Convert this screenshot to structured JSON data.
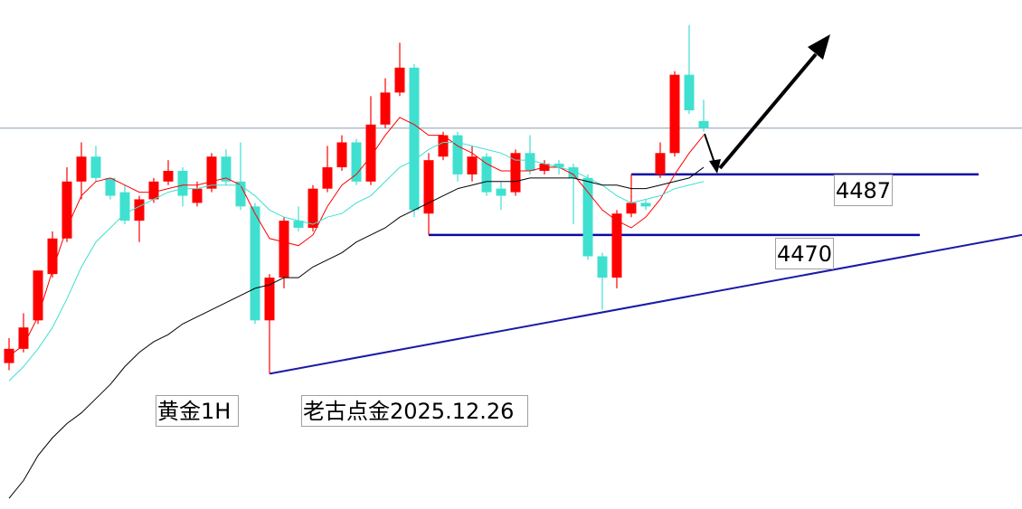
{
  "chart_data": {
    "type": "candlestick",
    "open": [
      4434,
      4438,
      4446,
      4459,
      4469,
      4485,
      4492,
      4486,
      4482,
      4474,
      4480,
      4485,
      4488,
      4479,
      4483,
      4492,
      4485,
      4478,
      4446,
      4458,
      4474,
      4472,
      4483,
      4489,
      4496,
      4485,
      4501,
      4510,
      4517,
      4476,
      4492,
      4498,
      4487,
      4492,
      4483,
      4482,
      4493,
      4488,
      4490,
      4489,
      4486,
      4464,
      4458,
      4476,
      4479,
      4487,
      4493,
      4515,
      4502
    ],
    "high": [
      4441,
      4448,
      4460,
      4471,
      4489,
      4496,
      4495,
      4486,
      4484,
      4481,
      4486,
      4491,
      4489,
      4485,
      4493,
      4494,
      4496,
      4479,
      4459,
      4475,
      4478,
      4484,
      4495,
      4498,
      4497,
      4509,
      4514,
      4524,
      4518,
      4493,
      4499,
      4499,
      4495,
      4493,
      4485,
      4494,
      4498,
      4491,
      4491,
      4490,
      4487,
      4465,
      4477,
      4487,
      4480,
      4496,
      4516,
      4529,
      4508
    ],
    "low": [
      4432,
      4437,
      4445,
      4458,
      4468,
      4480,
      4485,
      4480,
      4473,
      4468,
      4479,
      4484,
      4478,
      4478,
      4482,
      4484,
      4477,
      4445,
      4431,
      4455,
      4471,
      4471,
      4482,
      4488,
      4484,
      4484,
      4500,
      4509,
      4475,
      4470,
      4491,
      4485,
      4485,
      4481,
      4477,
      4481,
      4487,
      4487,
      4487,
      4473,
      4463,
      4449,
      4455,
      4475,
      4477,
      4486,
      4492,
      4504,
      4499
    ],
    "close": [
      4438,
      4444,
      4460,
      4469,
      4485,
      4492,
      4486,
      4481,
      4474,
      4480,
      4485,
      4488,
      4481,
      4483,
      4492,
      4485,
      4478,
      4446,
      4458,
      4474,
      4472,
      4483,
      4489,
      4496,
      4485,
      4501,
      4510,
      4517,
      4477,
      4491,
      4498,
      4487,
      4492,
      4482,
      4481,
      4493,
      4488,
      4490,
      4489,
      4486,
      4464,
      4458,
      4476,
      4479,
      4478,
      4493,
      4515,
      4505,
      4500
    ],
    "up_color": "#ff0000",
    "down_color": "#40e0d0",
    "series": [
      {
        "color": "#ff0000",
        "values": [
          4436,
          4439,
          4447,
          4460,
          4472,
          4481,
          4485,
          4486,
          4484,
          4482,
          4482,
          4483,
          4484,
          4484,
          4485,
          4486,
          4484,
          4476,
          4469,
          4468,
          4467,
          4470,
          4478,
          4484,
          4487,
          4492,
          4498,
          4503,
          4501,
          4498,
          4498,
          4495,
          4493,
          4490,
          4488,
          4488,
          4488,
          4489,
          4489,
          4487,
          4482,
          4477,
          4474,
          4472,
          4475,
          4480,
          4487,
          4493,
          4498
        ]
      },
      {
        "color": "#40e0d0",
        "values": [
          4429,
          4433,
          4438,
          4444,
          4452,
          4461,
          4468,
          4472,
          4476,
          4478,
          4480,
          4482,
          4483,
          4483,
          4484,
          4484,
          4484,
          4481,
          4477,
          4475,
          4474,
          4473,
          4475,
          4476,
          4479,
          4481,
          4485,
          4489,
          4491,
          4494,
          4496,
          4496,
          4495,
          4494,
          4493,
          4491,
          4491,
          4490,
          4489,
          4488,
          4486,
          4484,
          4481,
          4479,
          4480,
          4481,
          4483,
          4484,
          4485
        ]
      },
      {
        "color": "#000000",
        "values": [
          4396,
          4401,
          4408,
          4413,
          4417,
          4420,
          4424,
          4428,
          4433,
          4437,
          4440,
          4442,
          4445,
          4447,
          4449,
          4451,
          4453,
          4455,
          4456,
          4458,
          4458,
          4461,
          4463,
          4465,
          4468,
          4470,
          4472,
          4475,
          4477,
          4479,
          4481,
          4483,
          4484,
          4485,
          4485,
          4485,
          4486,
          4486,
          4486,
          4486,
          4485,
          4484,
          4484,
          4483,
          4483,
          4484,
          4485,
          4486,
          4489
        ]
      }
    ],
    "ylim": [
      4393,
      4536
    ],
    "price_line": 4500,
    "levels": [
      {
        "value": 4487
      },
      {
        "value": 4470
      }
    ],
    "trendline": [
      4431,
      4470
    ],
    "annotations": [
      "黄金1H",
      "老古点金2025.12.26"
    ]
  }
}
